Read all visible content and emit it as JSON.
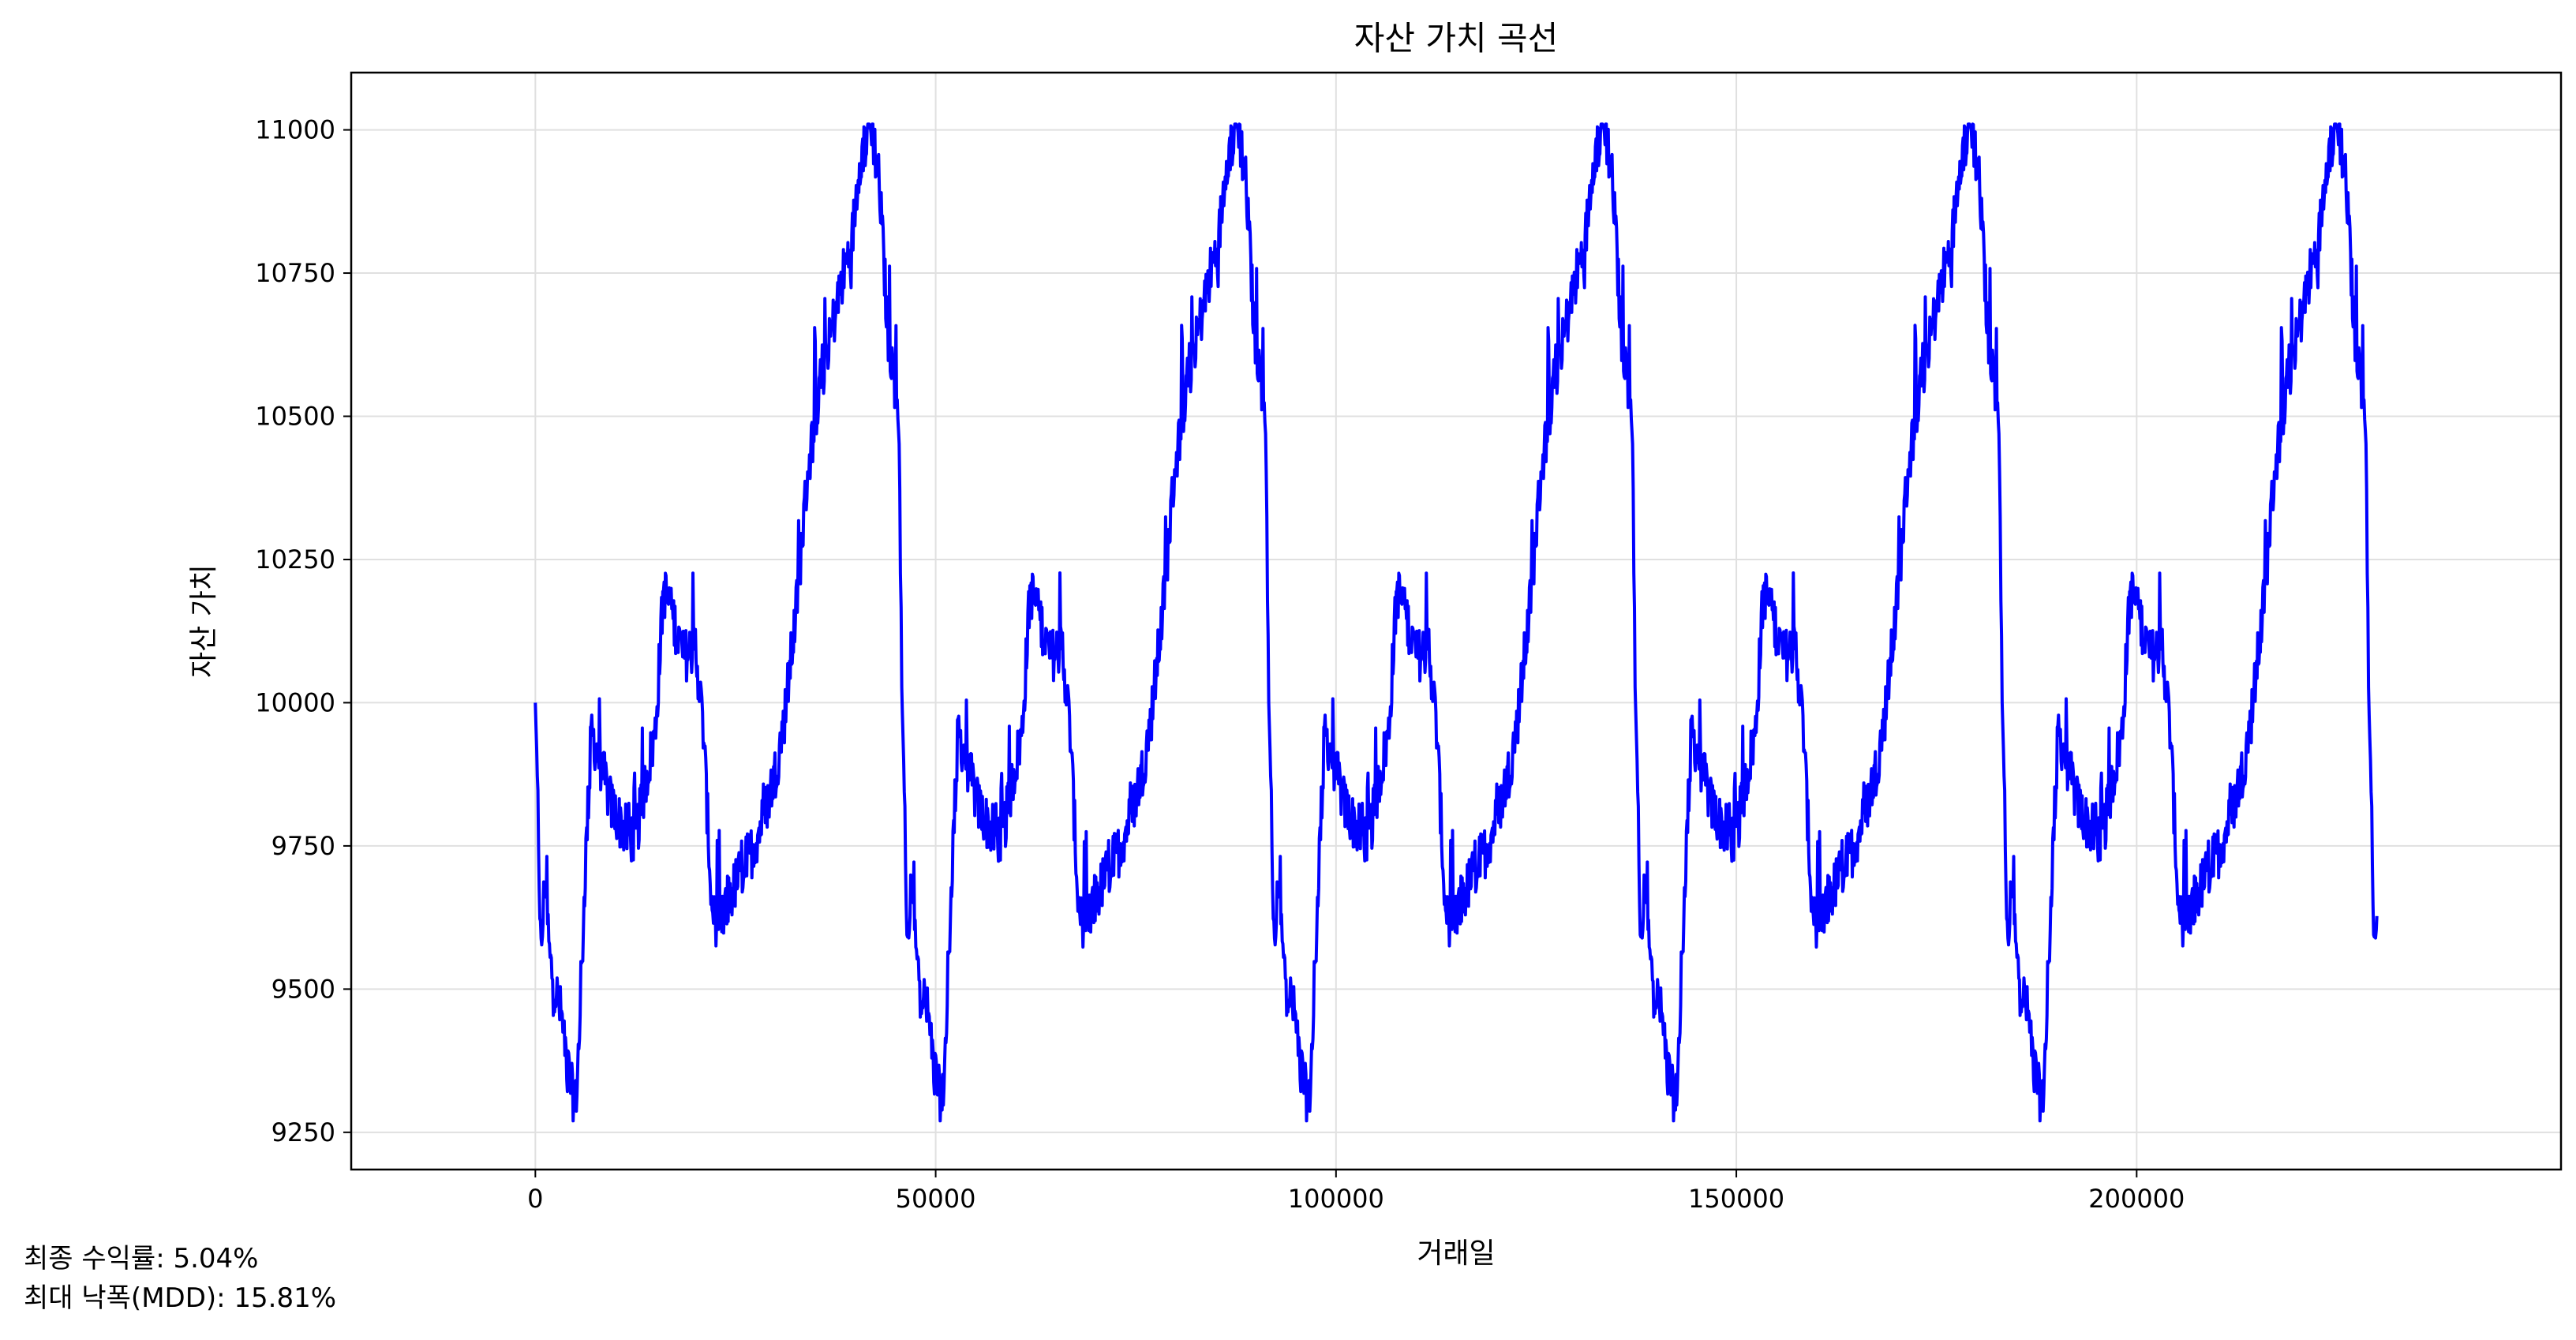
{
  "chart_data": {
    "type": "line",
    "title": "자산 가치 곡선",
    "xlabel": "거래일",
    "ylabel": "자산 가치",
    "xlim": [
      -23000,
      253000
    ],
    "ylim": [
      9185,
      11100
    ],
    "x_ticks": [
      0,
      50000,
      100000,
      150000,
      200000
    ],
    "x_tick_labels": [
      "0",
      "50000",
      "100000",
      "150000",
      "200000"
    ],
    "y_ticks": [
      9250,
      9500,
      9750,
      10000,
      10250,
      10500,
      10750,
      11000
    ],
    "y_tick_labels": [
      "9250",
      "9500",
      "9750",
      "10000",
      "10250",
      "10500",
      "10750",
      "11000"
    ],
    "grid": true,
    "series": [
      {
        "name": "자산 가치",
        "color": "#0000ff",
        "cycle_length": 45800,
        "cycles": 5,
        "x_end": 230000,
        "cycle_profile": {
          "x": [
            0,
            200,
            700,
            1200,
            1800,
            2500,
            3300,
            4200,
            5000,
            5600,
            6200,
            7000,
            8000,
            9500,
            11000,
            12500,
            14000,
            15000,
            16000,
            17200,
            18500,
            20000,
            21000,
            22000,
            23000,
            24000,
            25500,
            27000,
            28500,
            30000,
            31000,
            32500,
            34000,
            35500,
            37000,
            38500,
            39500,
            40500,
            42000,
            43000,
            44000,
            45000,
            45400,
            45799
          ],
          "y": [
            10000,
            9900,
            9550,
            9700,
            9550,
            9500,
            9450,
            9350,
            9290,
            9450,
            9700,
            9950,
            9900,
            9820,
            9780,
            9760,
            9880,
            9950,
            10200,
            10150,
            10080,
            10100,
            9950,
            9650,
            9600,
            9650,
            9700,
            9740,
            9800,
            9880,
            9960,
            10150,
            10400,
            10550,
            10650,
            10750,
            10800,
            10950,
            11010,
            10900,
            10650,
            10550,
            10500,
            10020
          ]
        },
        "volatility": 95
      }
    ]
  },
  "stats": {
    "total_return": "최종 수익률: 5.04%",
    "max_drawdown": "최대 낙폭(MDD): 15.81%"
  }
}
